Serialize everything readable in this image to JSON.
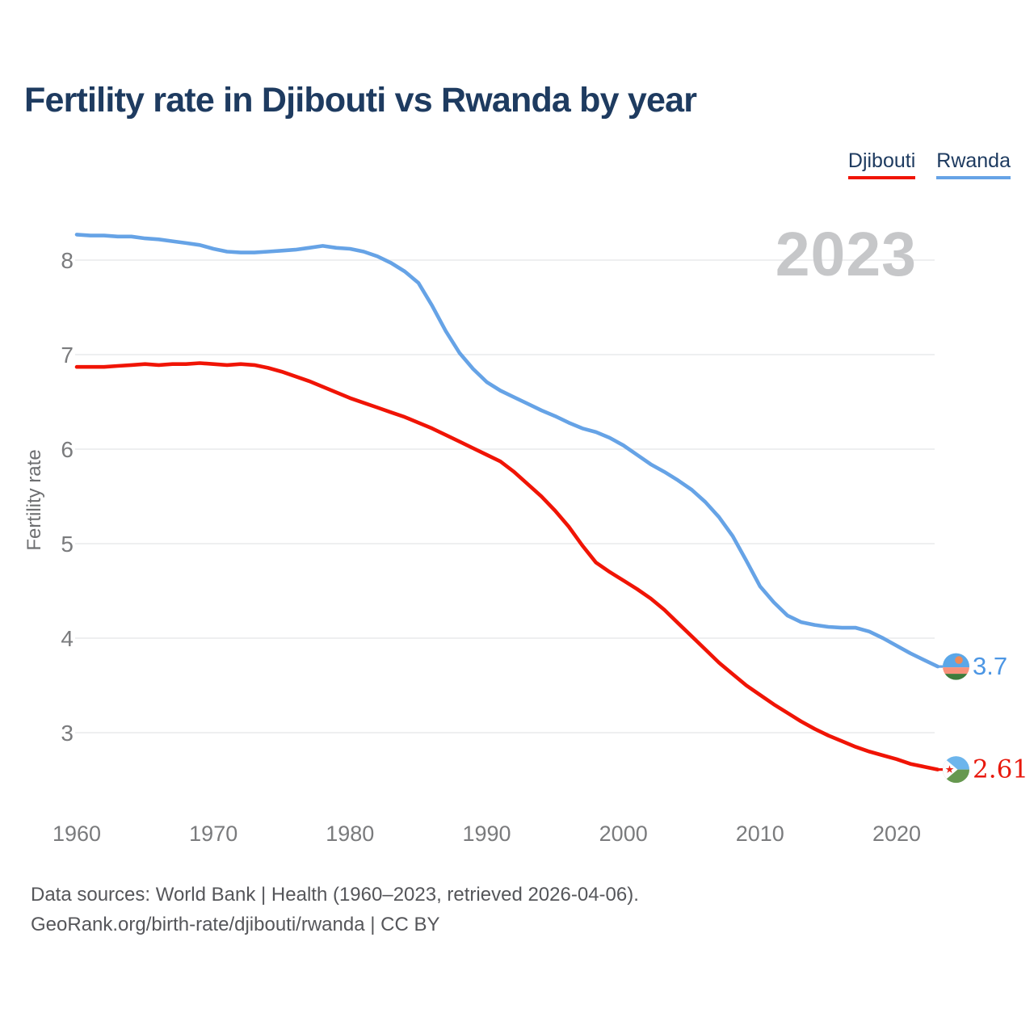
{
  "header": {
    "title": "Fertility rate in Djibouti vs Rwanda by year"
  },
  "legend": {
    "items": [
      {
        "label": "Djibouti",
        "color": "#F01405"
      },
      {
        "label": "Rwanda",
        "color": "#66A3E6"
      }
    ]
  },
  "watermark": {
    "year": "2023"
  },
  "chart_data": {
    "type": "line",
    "title": "Fertility rate in Djibouti vs Rwanda by year",
    "xlabel": "",
    "ylabel": "Fertility rate",
    "xlim": [
      1960,
      2023
    ],
    "ylim": [
      2.4,
      8.6
    ],
    "grid": "horizontal",
    "legend_position": "top-right",
    "x_ticks": [
      1960,
      1970,
      1980,
      1990,
      2000,
      2010,
      2020
    ],
    "y_ticks": [
      3,
      4,
      5,
      6,
      7,
      8
    ],
    "x": [
      1960,
      1961,
      1962,
      1963,
      1964,
      1965,
      1966,
      1967,
      1968,
      1969,
      1970,
      1971,
      1972,
      1973,
      1974,
      1975,
      1976,
      1977,
      1978,
      1979,
      1980,
      1981,
      1982,
      1983,
      1984,
      1985,
      1986,
      1987,
      1988,
      1989,
      1990,
      1991,
      1992,
      1993,
      1994,
      1995,
      1996,
      1997,
      1998,
      1999,
      2000,
      2001,
      2002,
      2003,
      2004,
      2005,
      2006,
      2007,
      2008,
      2009,
      2010,
      2011,
      2012,
      2013,
      2014,
      2015,
      2016,
      2017,
      2018,
      2019,
      2020,
      2021,
      2022,
      2023
    ],
    "series": [
      {
        "name": "Rwanda",
        "color": "#66A3E6",
        "label_color": "#4C96E4",
        "end_label": "3.7",
        "flag_icon": "rwanda-flag-icon",
        "label_font": "sans",
        "values": [
          8.27,
          8.26,
          8.26,
          8.25,
          8.25,
          8.23,
          8.22,
          8.2,
          8.18,
          8.16,
          8.12,
          8.09,
          8.08,
          8.08,
          8.09,
          8.1,
          8.11,
          8.13,
          8.15,
          8.13,
          8.12,
          8.09,
          8.04,
          7.97,
          7.88,
          7.76,
          7.52,
          7.25,
          7.02,
          6.85,
          6.71,
          6.62,
          6.55,
          6.48,
          6.41,
          6.35,
          6.28,
          6.22,
          6.18,
          6.12,
          6.04,
          5.94,
          5.84,
          5.76,
          5.67,
          5.57,
          5.44,
          5.28,
          5.08,
          4.82,
          4.55,
          4.38,
          4.24,
          4.17,
          4.14,
          4.12,
          4.11,
          4.11,
          4.07,
          4.0,
          3.92,
          3.84,
          3.77,
          3.7
        ]
      },
      {
        "name": "Djibouti",
        "color": "#F01405",
        "label_color": "#E8180C",
        "end_label": "2.61",
        "flag_icon": "djibouti-flag-icon",
        "label_font": "serif",
        "values": [
          6.87,
          6.87,
          6.87,
          6.88,
          6.89,
          6.9,
          6.89,
          6.9,
          6.9,
          6.91,
          6.9,
          6.89,
          6.9,
          6.89,
          6.86,
          6.82,
          6.77,
          6.72,
          6.66,
          6.6,
          6.54,
          6.49,
          6.44,
          6.39,
          6.34,
          6.28,
          6.22,
          6.15,
          6.08,
          6.01,
          5.94,
          5.87,
          5.76,
          5.63,
          5.5,
          5.35,
          5.18,
          4.98,
          4.8,
          4.7,
          4.61,
          4.52,
          4.42,
          4.3,
          4.16,
          4.02,
          3.88,
          3.74,
          3.62,
          3.5,
          3.4,
          3.3,
          3.21,
          3.12,
          3.04,
          2.97,
          2.91,
          2.85,
          2.8,
          2.76,
          2.72,
          2.67,
          2.64,
          2.61
        ]
      }
    ]
  },
  "footer": {
    "line1": "Data sources: World Bank | Health (1960–2023, retrieved 2026-04-06).",
    "line2": "GeoRank.org/birth-rate/djibouti/rwanda | CC BY"
  }
}
